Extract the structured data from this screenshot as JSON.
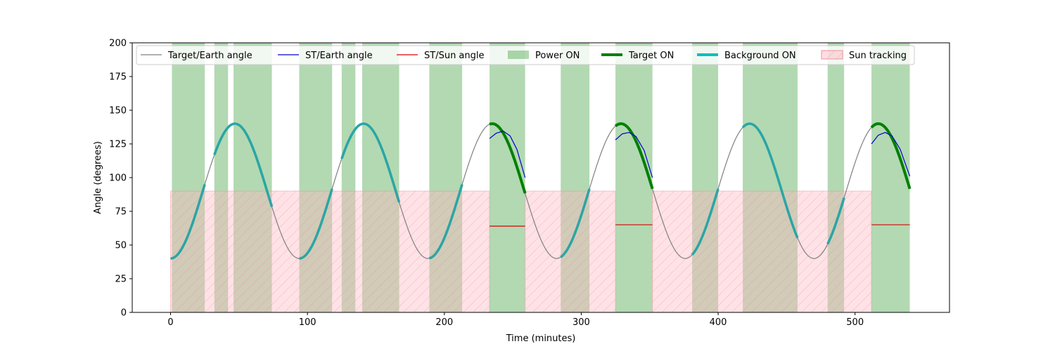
{
  "chart_data": {
    "type": "line",
    "xlabel": "Time (minutes)",
    "ylabel": "Angle (degrees)",
    "xlim": [
      -28,
      569
    ],
    "ylim": [
      0,
      200
    ],
    "xticks": [
      0,
      100,
      200,
      300,
      400,
      500
    ],
    "yticks": [
      0,
      25,
      50,
      75,
      100,
      125,
      150,
      175,
      200
    ],
    "grid": false,
    "legend_position": "top",
    "target_earth_model": {
      "mean": 90,
      "amplitude": 50,
      "period_min": 94,
      "min_at_min": 0
    },
    "series": [
      {
        "name": "Target/Earth angle",
        "color": "#808080",
        "kind": "line"
      },
      {
        "name": "ST/Earth angle",
        "color": "#0000cc",
        "kind": "line",
        "segments": [
          {
            "x": [
              233,
              238,
              243,
              248,
              253,
              259
            ],
            "y": [
              129,
              133,
              134.5,
              131,
              121,
              100
            ]
          },
          {
            "x": [
              325,
              330,
              335,
              340,
              346,
              352
            ],
            "y": [
              128,
              132.5,
              133.5,
              130.5,
              120,
              100
            ]
          },
          {
            "x": [
              512,
              517,
              522,
              527,
              533,
              540
            ],
            "y": [
              125,
              131.5,
              133.5,
              131,
              121,
              101
            ]
          }
        ]
      },
      {
        "name": "ST/Sun angle",
        "color": "#dd0000",
        "kind": "line",
        "segments": [
          {
            "x": [
              233,
              259
            ],
            "y": [
              64,
              64
            ]
          },
          {
            "x": [
              325,
              352
            ],
            "y": [
              65,
              65
            ]
          },
          {
            "x": [
              512,
              540
            ],
            "y": [
              65,
              65
            ]
          }
        ]
      },
      {
        "name": "Power ON",
        "color": "#008000",
        "kind": "span",
        "alpha": 0.3,
        "intervals": [
          [
            1,
            25
          ],
          [
            32,
            42
          ],
          [
            46,
            74
          ],
          [
            94,
            118
          ],
          [
            125,
            135
          ],
          [
            140,
            167
          ],
          [
            189,
            213
          ],
          [
            233,
            259
          ],
          [
            285,
            306
          ],
          [
            325,
            352
          ],
          [
            381,
            400
          ],
          [
            418,
            458
          ],
          [
            480,
            492
          ],
          [
            512,
            540
          ]
        ]
      },
      {
        "name": "Target ON",
        "color": "#008000",
        "kind": "highlight",
        "intervals": [
          [
            233,
            259
          ],
          [
            325,
            352
          ],
          [
            512,
            540
          ]
        ]
      },
      {
        "name": "Background ON",
        "color": "#2ba5a5",
        "kind": "highlight",
        "intervals": [
          [
            0,
            25
          ],
          [
            32,
            74
          ],
          [
            94,
            118
          ],
          [
            125,
            167
          ],
          [
            189,
            213
          ],
          [
            285,
            306
          ],
          [
            381,
            400
          ],
          [
            418,
            458
          ],
          [
            480,
            492
          ]
        ]
      },
      {
        "name": "Sun tracking",
        "color": "#ffb6c1",
        "kind": "rect",
        "y_top": 90,
        "intervals": [
          [
            0,
            233
          ],
          [
            259,
            325
          ],
          [
            352,
            512
          ]
        ]
      }
    ]
  }
}
